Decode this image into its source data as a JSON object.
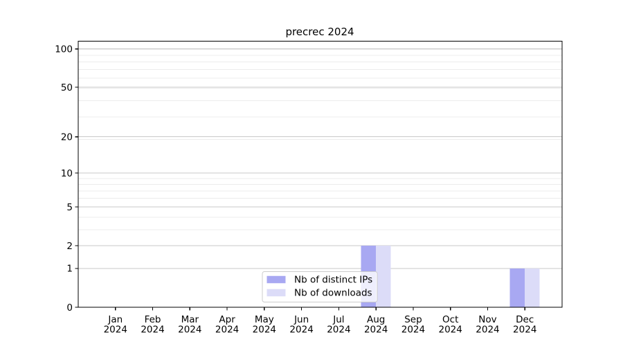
{
  "chart_data": {
    "type": "bar",
    "title": "precrec 2024",
    "x_categories_line1": [
      "Jan",
      "Feb",
      "Mar",
      "Apr",
      "May",
      "Jun",
      "Jul",
      "Aug",
      "Sep",
      "Oct",
      "Nov",
      "Dec"
    ],
    "x_categories_line2": [
      "2024",
      "2024",
      "2024",
      "2024",
      "2024",
      "2024",
      "2024",
      "2024",
      "2024",
      "2024",
      "2024",
      "2024"
    ],
    "series": [
      {
        "name": "Nb of distinct IPs",
        "color": "#a8a8f2",
        "values": [
          0,
          0,
          0,
          0,
          0,
          0,
          0,
          2,
          0,
          0,
          0,
          1
        ]
      },
      {
        "name": "Nb of downloads",
        "color": "#dcdcf8",
        "values": [
          0,
          0,
          0,
          0,
          0,
          0,
          0,
          2,
          0,
          0,
          0,
          1
        ]
      }
    ],
    "y_axis": {
      "scale": "log10(1+y)",
      "tick_values": [
        0,
        1,
        2,
        5,
        10,
        20,
        50,
        100
      ],
      "tick_labels": [
        "0",
        "1",
        "2",
        "5",
        "10",
        "20",
        "50",
        "100"
      ],
      "range": [
        0,
        115
      ]
    },
    "legend": {
      "position": "lower center",
      "entries": [
        "Nb of distinct IPs",
        "Nb of downloads"
      ]
    },
    "grid": {
      "horizontal": true,
      "vertical": false
    }
  },
  "colors": {
    "background": "#ffffff",
    "spine": "#000000",
    "grid_major": "#c9c9c9",
    "grid_minor": "#ececec",
    "text": "#000000",
    "legend_border": "#cccccc",
    "legend_bg_alpha": "rgba(255,255,255,0.8)"
  }
}
